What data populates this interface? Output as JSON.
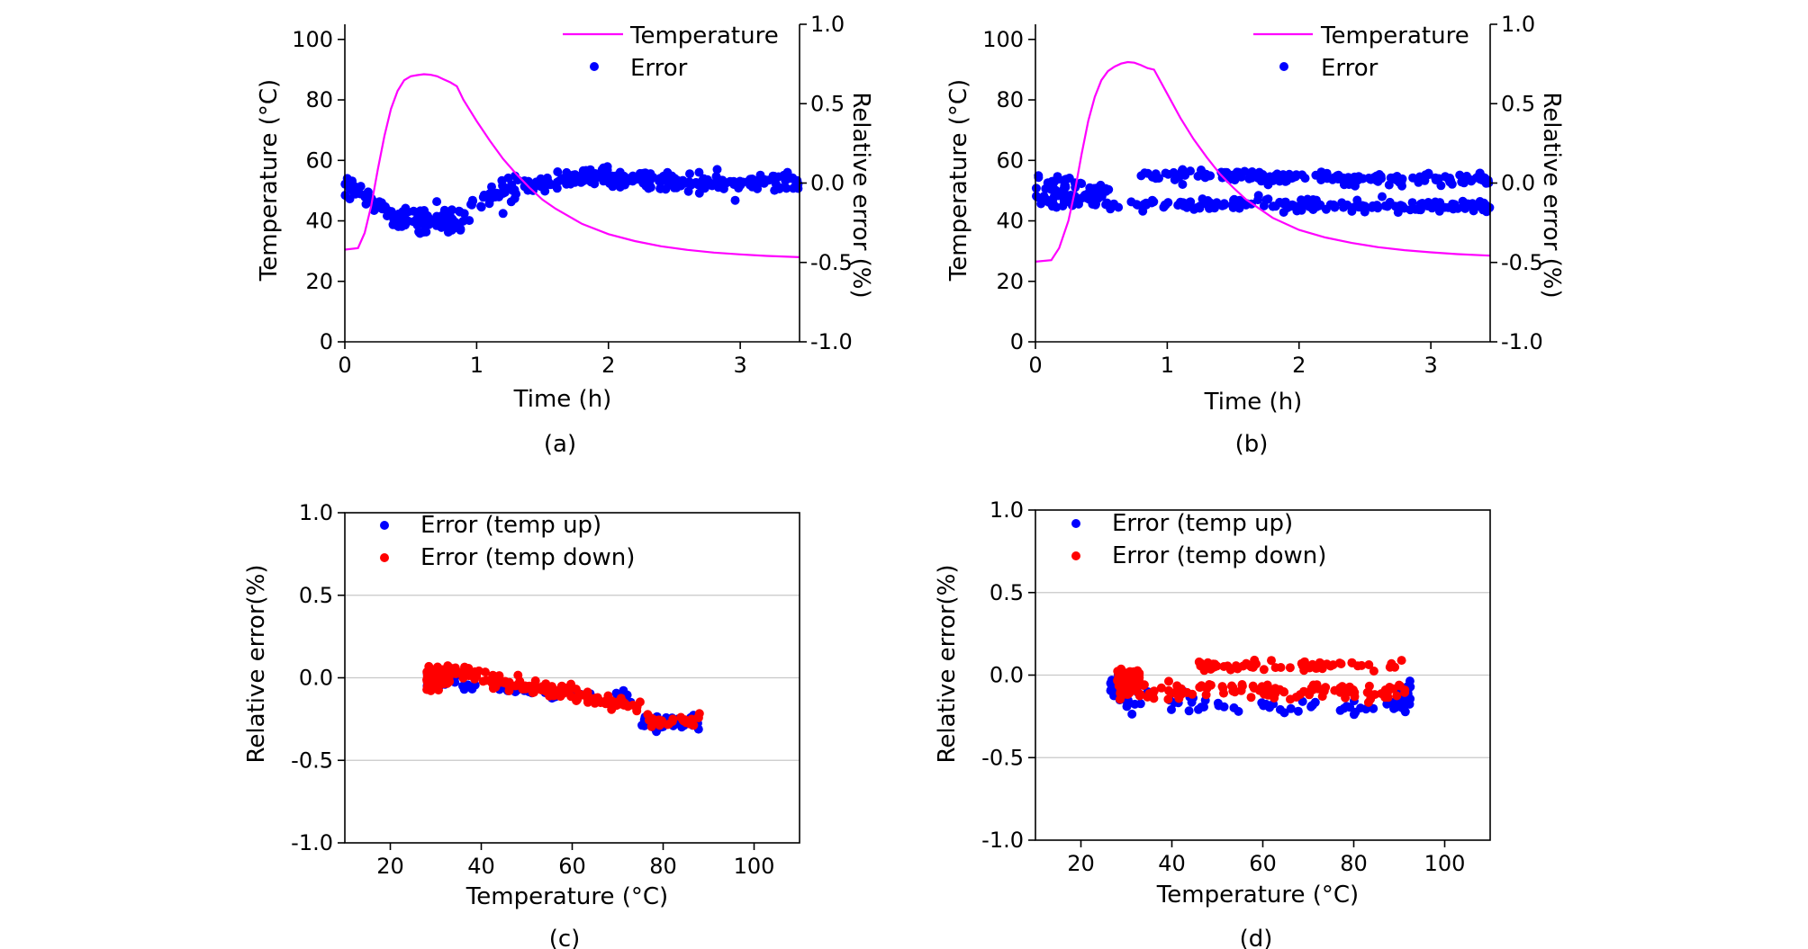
{
  "chart_data": [
    {
      "type": "line+scatter",
      "panel": "a",
      "caption": "(a)",
      "xlabel": "Time (h)",
      "ylabel_left": "Temperature (°C)",
      "ylabel_right": "Relative error (%)",
      "xlim": [
        0,
        3.45
      ],
      "ylim_left": [
        0,
        105
      ],
      "ylim_right": [
        -1.0,
        1.0
      ],
      "xticks": [
        0,
        1,
        2,
        3
      ],
      "xtick_labels": [
        "0",
        "1",
        "2",
        "3"
      ],
      "yticks_left": [
        0,
        20,
        40,
        60,
        80,
        100
      ],
      "ytick_labels_left": [
        "0",
        "20",
        "40",
        "60",
        "80",
        "100"
      ],
      "yticks_right": [
        -1.0,
        -0.5,
        0.0,
        0.5,
        1.0
      ],
      "ytick_labels_right": [
        "-1.0",
        "-0.5",
        "0.0",
        "0.5",
        "1.0"
      ],
      "legend": [
        "Temperature",
        "Error"
      ],
      "series": [
        {
          "name": "Temperature",
          "axis": "left",
          "color": "#ff00ff",
          "kind": "line",
          "x": [
            0,
            0.1,
            0.15,
            0.2,
            0.25,
            0.3,
            0.35,
            0.4,
            0.45,
            0.5,
            0.55,
            0.6,
            0.65,
            0.7,
            0.75,
            0.8,
            0.85,
            0.9,
            1.0,
            1.1,
            1.2,
            1.3,
            1.4,
            1.5,
            1.6,
            1.8,
            2.0,
            2.2,
            2.4,
            2.6,
            2.8,
            3.0,
            3.2,
            3.45
          ],
          "y": [
            30.5,
            31,
            36,
            45,
            57,
            68,
            77,
            83,
            86.5,
            87.8,
            88.2,
            88.5,
            88.3,
            87.8,
            86.8,
            85.8,
            84.5,
            80,
            73,
            66.5,
            60.5,
            55.5,
            51,
            47,
            44,
            39,
            35.6,
            33.3,
            31.6,
            30.4,
            29.5,
            28.9,
            28.4,
            28
          ]
        },
        {
          "name": "Error",
          "axis": "right",
          "color": "#0000ff",
          "kind": "scatter",
          "segments": [
            {
              "x0": 0.0,
              "x1": 0.12,
              "mean0": 0.0,
              "mean1": -0.05,
              "noise": 0.05,
              "n": 15
            },
            {
              "x0": 0.12,
              "x1": 0.35,
              "mean0": -0.05,
              "mean1": -0.2,
              "noise": 0.06,
              "n": 25
            },
            {
              "x0": 0.35,
              "x1": 0.95,
              "mean0": -0.22,
              "mean1": -0.24,
              "noise": 0.07,
              "n": 80
            },
            {
              "x0": 0.95,
              "x1": 1.3,
              "mean0": -0.13,
              "mean1": -0.03,
              "noise": 0.06,
              "n": 35
            },
            {
              "x0": 1.3,
              "x1": 2.0,
              "mean0": -0.02,
              "mean1": 0.06,
              "noise": 0.05,
              "n": 80
            },
            {
              "x0": 2.0,
              "x1": 3.45,
              "mean0": 0.02,
              "mean1": 0.0,
              "noise": 0.05,
              "n": 150
            }
          ]
        }
      ]
    },
    {
      "type": "line+scatter",
      "panel": "b",
      "caption": "(b)",
      "xlabel": "Time (h)",
      "ylabel_left": "Temperature (°C)",
      "ylabel_right": "Relative error (%)",
      "xlim": [
        0,
        3.45
      ],
      "ylim_left": [
        0,
        105
      ],
      "ylim_right": [
        -1.0,
        1.0
      ],
      "xticks": [
        0,
        1,
        2,
        3
      ],
      "xtick_labels": [
        "0",
        "1",
        "2",
        "3"
      ],
      "yticks_left": [
        0,
        20,
        40,
        60,
        80,
        100
      ],
      "ytick_labels_left": [
        "0",
        "20",
        "40",
        "60",
        "80",
        "100"
      ],
      "yticks_right": [
        -1.0,
        -0.5,
        0.0,
        0.5,
        1.0
      ],
      "ytick_labels_right": [
        "-1.0",
        "-0.5",
        "0.0",
        "0.5",
        "1.0"
      ],
      "legend": [
        "Temperature",
        "Error"
      ],
      "series": [
        {
          "name": "Temperature",
          "axis": "left",
          "color": "#ff00ff",
          "kind": "line",
          "x": [
            0,
            0.12,
            0.18,
            0.25,
            0.3,
            0.35,
            0.4,
            0.45,
            0.5,
            0.55,
            0.6,
            0.65,
            0.7,
            0.75,
            0.8,
            0.85,
            0.9,
            1.0,
            1.1,
            1.2,
            1.3,
            1.4,
            1.5,
            1.6,
            1.8,
            2.0,
            2.2,
            2.4,
            2.6,
            2.8,
            3.0,
            3.2,
            3.45
          ],
          "y": [
            26.5,
            27,
            31,
            40,
            50,
            62,
            73,
            81,
            86.5,
            89.5,
            91,
            92,
            92.5,
            92.3,
            91.5,
            90.5,
            90,
            82,
            74,
            67,
            61,
            55.5,
            51,
            47,
            41,
            37,
            34.5,
            32.7,
            31.3,
            30.3,
            29.6,
            29,
            28.5
          ]
        },
        {
          "name": "Error",
          "axis": "right",
          "color": "#0000ff",
          "kind": "scatter",
          "segments": [
            {
              "x0": 0.0,
              "x1": 0.6,
              "mean0": -0.1,
              "mean1": -0.1,
              "noise": 0.06,
              "n": 70
            },
            {
              "x0": 0.0,
              "x1": 0.6,
              "mean0": 0.04,
              "mean1": -0.05,
              "noise": 0.04,
              "n": 30
            },
            {
              "x0": 0.6,
              "x1": 3.45,
              "mean0": -0.13,
              "mean1": -0.15,
              "noise": 0.035,
              "n": 170
            },
            {
              "x0": 0.8,
              "x1": 3.45,
              "mean0": 0.05,
              "mean1": 0.02,
              "noise": 0.035,
              "n": 170
            }
          ]
        }
      ]
    },
    {
      "type": "scatter",
      "panel": "c",
      "caption": "(c)",
      "xlabel": "Temperature (°C)",
      "ylabel": "Relative error(%)",
      "xlim": [
        10,
        110
      ],
      "ylim": [
        -1.0,
        1.0
      ],
      "xticks": [
        20,
        40,
        60,
        80,
        100
      ],
      "xtick_labels": [
        "20",
        "40",
        "60",
        "80",
        "100"
      ],
      "yticks": [
        -1.0,
        -0.5,
        0.0,
        0.5,
        1.0
      ],
      "ytick_labels": [
        "-1.0",
        "-0.5",
        "0.0",
        "0.5",
        "1.0"
      ],
      "grid": "horizontal",
      "legend": [
        "Error (temp up)",
        "Error (temp down)"
      ],
      "series": [
        {
          "name": "Error (temp up)",
          "color": "#0000ff",
          "segments": [
            {
              "x0": 28,
              "x1": 35,
              "mean0": -0.02,
              "mean1": 0.0,
              "noise": 0.05,
              "n": 30
            },
            {
              "x0": 35,
              "x1": 74,
              "mean0": -0.05,
              "mean1": -0.13,
              "noise": 0.04,
              "n": 40
            },
            {
              "x0": 75,
              "x1": 88,
              "mean0": -0.27,
              "mean1": -0.27,
              "noise": 0.04,
              "n": 55
            }
          ]
        },
        {
          "name": "Error (temp down)",
          "color": "#ff0000",
          "segments": [
            {
              "x0": 28,
              "x1": 33,
              "mean0": 0.0,
              "mean1": 0.01,
              "noise": 0.06,
              "n": 120
            },
            {
              "x0": 33,
              "x1": 75,
              "mean0": 0.04,
              "mean1": -0.18,
              "noise": 0.04,
              "n": 130
            },
            {
              "x0": 76,
              "x1": 88,
              "mean0": -0.26,
              "mean1": -0.26,
              "noise": 0.04,
              "n": 25
            }
          ]
        }
      ]
    },
    {
      "type": "scatter",
      "panel": "d",
      "caption": "(d)",
      "xlabel": "Temperature (°C)",
      "ylabel": "Relative error(%)",
      "xlim": [
        10,
        110
      ],
      "ylim": [
        -1.0,
        1.0
      ],
      "xticks": [
        20,
        40,
        60,
        80,
        100
      ],
      "xtick_labels": [
        "20",
        "40",
        "60",
        "80",
        "100"
      ],
      "yticks": [
        -1.0,
        -0.5,
        0.0,
        0.5,
        1.0
      ],
      "ytick_labels": [
        "-1.0",
        "-0.5",
        "0.0",
        "0.5",
        "1.0"
      ],
      "grid": "horizontal",
      "legend": [
        "Error (temp up)",
        "Error (temp down)"
      ],
      "series": [
        {
          "name": "Error (temp up)",
          "color": "#0000ff",
          "segments": [
            {
              "x0": 26.5,
              "x1": 30,
              "mean0": -0.08,
              "mean1": -0.08,
              "noise": 0.06,
              "n": 30
            },
            {
              "x0": 30,
              "x1": 92,
              "mean0": -0.16,
              "mean1": -0.2,
              "noise": 0.05,
              "n": 60
            },
            {
              "x0": 90,
              "x1": 92.5,
              "mean0": -0.1,
              "mean1": -0.1,
              "noise": 0.07,
              "n": 20
            }
          ]
        },
        {
          "name": "Error (temp down)",
          "color": "#ff0000",
          "segments": [
            {
              "x0": 28,
              "x1": 33,
              "mean0": -0.05,
              "mean1": -0.05,
              "noise": 0.07,
              "n": 120
            },
            {
              "x0": 33,
              "x1": 92,
              "mean0": -0.09,
              "mean1": -0.1,
              "noise": 0.04,
              "n": 110
            },
            {
              "x0": 45,
              "x1": 92,
              "mean0": 0.06,
              "mean1": 0.06,
              "noise": 0.03,
              "n": 60
            }
          ]
        }
      ]
    }
  ]
}
